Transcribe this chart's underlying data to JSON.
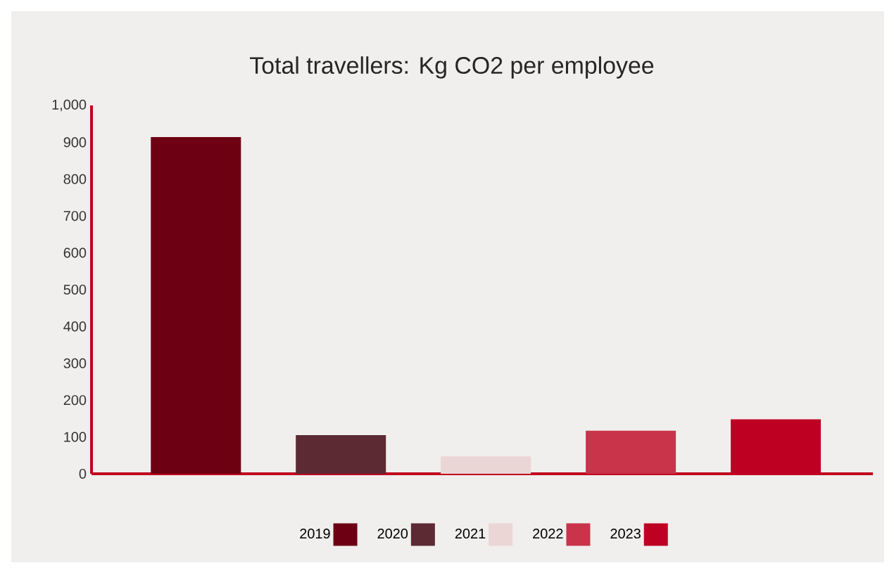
{
  "chart_data": {
    "type": "bar",
    "title": "Total travellers: Kg CO2 per employee",
    "categories": [
      null,
      null,
      null,
      null,
      null
    ],
    "series": [
      {
        "name": "2019",
        "color": "#6e0014",
        "values": [
          914,
          null,
          null,
          null,
          null
        ]
      },
      {
        "name": "2020",
        "color": "#5c2a33",
        "values": [
          null,
          105,
          null,
          null,
          null
        ]
      },
      {
        "name": "2021",
        "color": "#ebd6d6",
        "values": [
          null,
          null,
          47,
          null,
          null
        ]
      },
      {
        "name": "2022",
        "color": "#c9344a",
        "values": [
          null,
          null,
          null,
          117,
          null
        ]
      },
      {
        "name": "2023",
        "color": "#be0023",
        "values": [
          null,
          null,
          null,
          null,
          148
        ]
      }
    ],
    "ylim": [
      0,
      1000
    ],
    "yticks": [
      0,
      100,
      200,
      300,
      400,
      500,
      600,
      700,
      800,
      900,
      {
        "value": 1000,
        "label": "1,000"
      }
    ],
    "legend": "bottom",
    "grid": false
  }
}
